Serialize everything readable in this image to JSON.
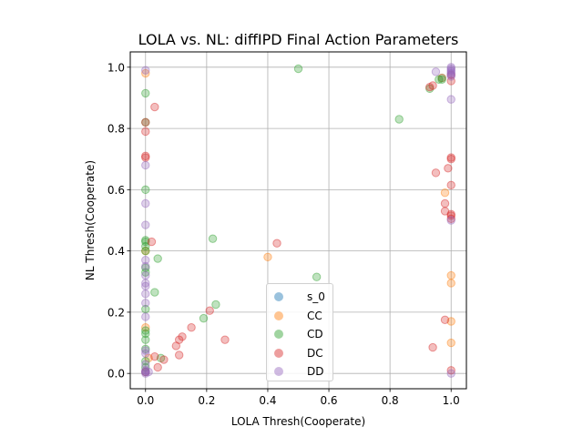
{
  "chart_data": {
    "type": "scatter",
    "title": "LOLA vs. NL: diffIPD Final Action Parameters",
    "xlabel": "LOLA Thresh(Cooperate)",
    "ylabel": "NL Thresh(Cooperate)",
    "xlim": [
      -0.05,
      1.05
    ],
    "ylim": [
      -0.05,
      1.05
    ],
    "xticks": [
      "0.0",
      "0.2",
      "0.4",
      "0.6",
      "0.8",
      "1.0"
    ],
    "yticks": [
      "0.0",
      "0.2",
      "0.4",
      "0.6",
      "0.8",
      "1.0"
    ],
    "grid": true,
    "legend_position": "lower-center",
    "series": [
      {
        "name": "s_0",
        "color": "#1f77b4",
        "points": [
          [
            0.97,
            0.965
          ],
          [
            0.0,
            0.005
          ]
        ]
      },
      {
        "name": "CC",
        "color": "#ff7f0e",
        "points": [
          [
            0.0,
            0.98
          ],
          [
            0.0,
            0.4
          ],
          [
            0.0,
            0.15
          ],
          [
            0.4,
            0.38
          ],
          [
            0.98,
            0.59
          ],
          [
            1.0,
            0.32
          ],
          [
            1.0,
            0.295
          ],
          [
            1.0,
            0.17
          ],
          [
            1.0,
            0.1
          ],
          [
            0.01,
            0.05
          ],
          [
            0.97,
            0.965
          ]
        ]
      },
      {
        "name": "CD",
        "color": "#2ca02c",
        "points": [
          [
            0.0,
            0.915
          ],
          [
            0.0,
            0.82
          ],
          [
            0.0,
            0.6
          ],
          [
            0.0,
            0.435
          ],
          [
            0.0,
            0.43
          ],
          [
            0.0,
            0.415
          ],
          [
            0.0,
            0.4
          ],
          [
            0.0,
            0.345
          ],
          [
            0.0,
            0.33
          ],
          [
            0.0,
            0.21
          ],
          [
            0.0,
            0.14
          ],
          [
            0.0,
            0.13
          ],
          [
            0.0,
            0.11
          ],
          [
            0.0,
            0.08
          ],
          [
            0.0,
            0.04
          ],
          [
            0.0,
            0.02
          ],
          [
            0.03,
            0.265
          ],
          [
            0.04,
            0.375
          ],
          [
            0.05,
            0.05
          ],
          [
            0.19,
            0.18
          ],
          [
            0.22,
            0.44
          ],
          [
            0.23,
            0.225
          ],
          [
            0.5,
            0.995
          ],
          [
            0.56,
            0.315
          ],
          [
            0.83,
            0.83
          ],
          [
            0.93,
            0.93
          ],
          [
            0.96,
            0.96
          ],
          [
            0.97,
            0.96
          ]
        ]
      },
      {
        "name": "DC",
        "color": "#d62728",
        "points": [
          [
            0.0,
            0.82
          ],
          [
            0.0,
            0.79
          ],
          [
            0.0,
            0.71
          ],
          [
            0.0,
            0.705
          ],
          [
            0.02,
            0.43
          ],
          [
            0.03,
            0.87
          ],
          [
            0.03,
            0.055
          ],
          [
            0.04,
            0.02
          ],
          [
            0.06,
            0.045
          ],
          [
            0.1,
            0.09
          ],
          [
            0.11,
            0.11
          ],
          [
            0.12,
            0.12
          ],
          [
            0.11,
            0.06
          ],
          [
            0.15,
            0.15
          ],
          [
            0.21,
            0.205
          ],
          [
            0.26,
            0.11
          ],
          [
            0.43,
            0.425
          ],
          [
            0.93,
            0.935
          ],
          [
            0.94,
            0.94
          ],
          [
            0.95,
            0.655
          ],
          [
            0.94,
            0.085
          ],
          [
            0.98,
            0.555
          ],
          [
            0.98,
            0.53
          ],
          [
            0.98,
            0.175
          ],
          [
            0.99,
            0.67
          ],
          [
            1.0,
            0.705
          ],
          [
            1.0,
            0.7
          ],
          [
            1.0,
            0.615
          ],
          [
            1.0,
            0.515
          ],
          [
            1.0,
            0.505
          ],
          [
            1.0,
            0.52
          ],
          [
            1.0,
            0.955
          ],
          [
            1.0,
            0.975
          ],
          [
            1.0,
            0.01
          ],
          [
            0.0,
            0.005
          ]
        ]
      },
      {
        "name": "DD",
        "color": "#9467bd",
        "points": [
          [
            0.0,
            0.99
          ],
          [
            0.0,
            0.68
          ],
          [
            0.0,
            0.555
          ],
          [
            0.0,
            0.485
          ],
          [
            0.0,
            0.37
          ],
          [
            0.0,
            0.35
          ],
          [
            0.0,
            0.32
          ],
          [
            0.0,
            0.295
          ],
          [
            0.0,
            0.285
          ],
          [
            0.0,
            0.26
          ],
          [
            0.0,
            0.23
          ],
          [
            0.0,
            0.185
          ],
          [
            0.0,
            0.075
          ],
          [
            0.0,
            0.065
          ],
          [
            0.0,
            0.03
          ],
          [
            0.0,
            0.01
          ],
          [
            0.0,
            0.005
          ],
          [
            0.0,
            0.0
          ],
          [
            0.01,
            0.005
          ],
          [
            0.95,
            0.985
          ],
          [
            1.0,
            1.0
          ],
          [
            1.0,
            0.995
          ],
          [
            1.0,
            0.99
          ],
          [
            1.0,
            0.985
          ],
          [
            1.0,
            0.98
          ],
          [
            1.0,
            0.975
          ],
          [
            1.0,
            0.97
          ],
          [
            1.0,
            0.895
          ],
          [
            1.0,
            0.5
          ],
          [
            1.0,
            0.0
          ]
        ]
      }
    ]
  }
}
